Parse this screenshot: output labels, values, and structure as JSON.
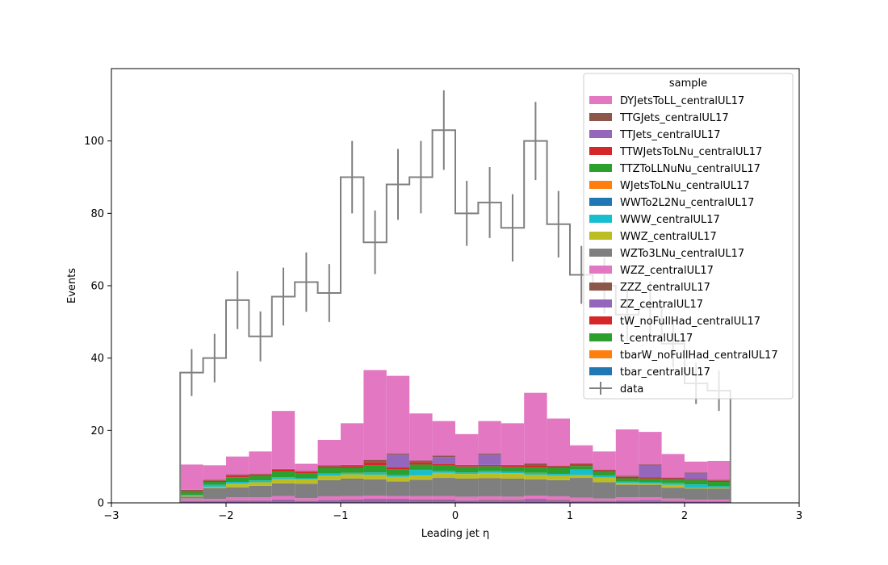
{
  "chart_data": {
    "type": "bar",
    "stacked": true,
    "xlabel": "Leading jet  η",
    "ylabel": "Events",
    "xlim": [
      -3,
      3
    ],
    "ylim": [
      0,
      120
    ],
    "xticks": [
      -3,
      -2,
      -1,
      0,
      1,
      2,
      3
    ],
    "xtick_labels": [
      "−3",
      "−2",
      "−1",
      "0",
      "1",
      "2",
      "3"
    ],
    "yticks": [
      0,
      20,
      40,
      60,
      80,
      100
    ],
    "grid": false,
    "bin_edges": [
      -2.4,
      -2.2,
      -2.0,
      -1.8,
      -1.6,
      -1.4,
      -1.2,
      -1.0,
      -0.8,
      -0.6,
      -0.4,
      -0.2,
      0.0,
      0.2,
      0.4,
      0.6,
      0.8,
      1.0,
      1.2,
      1.4,
      1.6,
      1.8,
      2.0,
      2.2,
      2.4
    ],
    "legend": {
      "title": "sample",
      "placement": "top-right",
      "data_label": "data"
    },
    "series": [
      {
        "name": "DYJetsToLL_centralUL17",
        "color": "#e377c2",
        "values": [
          7.0,
          4.0,
          5.0,
          6.2,
          16.0,
          2.0,
          7.0,
          11.5,
          24.8,
          21.5,
          13.0,
          9.5,
          8.5,
          9.0,
          11.5,
          19.5,
          13.0,
          5.0,
          5.0,
          12.8,
          9.0,
          6.5,
          3.0,
          5.2
        ]
      },
      {
        "name": "TTGJets_centralUL17",
        "color": "#8c564b",
        "values": [
          0.3,
          0.3,
          0.3,
          0.3,
          0.2,
          0.3,
          0.4,
          0.3,
          0.7,
          0.3,
          0.5,
          0.4,
          0.3,
          0.3,
          0.3,
          0.5,
          0.3,
          0.3,
          0.3,
          0.3,
          0.3,
          0.3,
          0.3,
          0.3
        ]
      },
      {
        "name": "TTJets_centralUL17",
        "color": "#9467bd",
        "values": [
          0.0,
          0.0,
          0.0,
          0.0,
          0.0,
          0.0,
          0.0,
          0.0,
          0.0,
          3.5,
          0.0,
          2.0,
          0.0,
          2.8,
          0.0,
          0.0,
          0.0,
          0.0,
          0.0,
          0.0,
          3.2,
          0.0,
          1.5,
          0.0
        ]
      },
      {
        "name": "TTWJetsToLNu_centralUL17",
        "color": "#d62728",
        "values": [
          0.3,
          0.3,
          0.4,
          0.3,
          0.5,
          0.4,
          0.4,
          0.5,
          0.8,
          0.6,
          0.6,
          0.4,
          0.3,
          0.4,
          0.4,
          0.6,
          0.4,
          0.4,
          0.4,
          0.4,
          0.4,
          0.3,
          0.3,
          0.3
        ]
      },
      {
        "name": "TTZToLLNuNu_centralUL17",
        "color": "#2ca02c",
        "values": [
          0.8,
          0.8,
          1.3,
          1.2,
          1.6,
          1.3,
          1.5,
          1.4,
          2.0,
          1.5,
          1.5,
          1.5,
          1.5,
          1.3,
          1.2,
          1.5,
          1.6,
          1.0,
          1.0,
          0.9,
          1.0,
          0.9,
          1.2,
          1.2
        ]
      },
      {
        "name": "WJetsToLNu_centralUL17",
        "color": "#ff7f0e",
        "values": [
          0.0,
          0.0,
          0.0,
          0.0,
          0.0,
          0.0,
          0.0,
          0.0,
          0.0,
          0.0,
          0.0,
          0.0,
          0.0,
          0.0,
          0.0,
          0.0,
          0.0,
          0.0,
          0.0,
          0.0,
          0.0,
          0.0,
          0.0,
          0.0
        ]
      },
      {
        "name": "WWTo2L2Nu_centralUL17",
        "color": "#1f77b4",
        "values": [
          0.0,
          0.0,
          0.0,
          0.0,
          0.0,
          0.0,
          0.0,
          0.0,
          0.0,
          0.0,
          0.0,
          0.0,
          0.0,
          0.0,
          0.0,
          0.0,
          0.0,
          0.0,
          0.0,
          0.0,
          0.0,
          0.0,
          0.0,
          0.0
        ]
      },
      {
        "name": "WWW_centralUL17",
        "color": "#17becf",
        "values": [
          0.3,
          0.6,
          0.5,
          0.5,
          0.5,
          0.3,
          0.6,
          0.4,
          0.6,
          0.5,
          1.5,
          0.5,
          0.4,
          0.5,
          0.4,
          0.5,
          0.5,
          1.5,
          0.5,
          0.4,
          0.4,
          0.5,
          1.0,
          0.5
        ]
      },
      {
        "name": "WWZ_centralUL17",
        "color": "#bcbd22",
        "values": [
          0.2,
          0.3,
          1.0,
          1.0,
          1.2,
          1.2,
          1.2,
          1.2,
          1.3,
          1.3,
          1.2,
          1.4,
          1.3,
          1.5,
          1.5,
          1.3,
          1.2,
          0.8,
          1.3,
          0.5,
          0.3,
          0.8,
          0.2,
          0.2
        ]
      },
      {
        "name": "WZTo3LNu_centralUL17",
        "color": "#7f7f7f",
        "values": [
          0.5,
          3.0,
          2.8,
          3.2,
          3.5,
          4.0,
          4.5,
          4.8,
          4.5,
          4.0,
          4.5,
          5.0,
          5.0,
          5.0,
          5.0,
          4.5,
          4.5,
          5.5,
          4.5,
          3.5,
          3.5,
          3.0,
          3.0,
          3.0
        ]
      },
      {
        "name": "WZZ_centralUL17",
        "color": "#e377c2",
        "values": [
          0.6,
          0.5,
          0.8,
          0.8,
          1.0,
          0.7,
          1.0,
          1.0,
          1.0,
          0.9,
          1.0,
          1.0,
          1.0,
          1.0,
          0.9,
          1.0,
          1.0,
          0.8,
          0.6,
          0.8,
          0.7,
          0.6,
          0.4,
          0.4
        ]
      },
      {
        "name": "ZZZ_centralUL17",
        "color": "#8c564b",
        "values": [
          0.1,
          0.1,
          0.1,
          0.1,
          0.1,
          0.1,
          0.1,
          0.2,
          0.2,
          0.2,
          0.2,
          0.2,
          0.1,
          0.2,
          0.2,
          0.2,
          0.2,
          0.1,
          0.1,
          0.1,
          0.1,
          0.1,
          0.1,
          0.1
        ]
      },
      {
        "name": "ZZ_centralUL17",
        "color": "#9467bd",
        "values": [
          0.5,
          0.5,
          0.6,
          0.6,
          0.8,
          0.5,
          0.7,
          0.7,
          0.8,
          0.8,
          0.7,
          0.7,
          0.6,
          0.6,
          0.6,
          0.8,
          0.6,
          0.5,
          0.5,
          0.6,
          0.7,
          0.5,
          0.4,
          0.4
        ]
      },
      {
        "name": "tW_noFullHad_centralUL17",
        "color": "#d62728",
        "values": [
          0.0,
          0.0,
          0.0,
          0.0,
          0.0,
          0.0,
          0.0,
          0.0,
          0.0,
          0.0,
          0.0,
          0.0,
          0.0,
          0.0,
          0.0,
          0.0,
          0.0,
          0.0,
          0.0,
          0.0,
          0.0,
          0.0,
          0.0,
          0.0
        ]
      },
      {
        "name": "t_centralUL17",
        "color": "#2ca02c",
        "values": [
          0.0,
          0.0,
          0.0,
          0.0,
          0.0,
          0.0,
          0.0,
          0.0,
          0.0,
          0.0,
          0.0,
          0.0,
          0.0,
          0.0,
          0.0,
          0.0,
          0.0,
          0.0,
          0.0,
          0.0,
          0.0,
          0.0,
          0.0,
          0.0
        ]
      },
      {
        "name": "tbarW_noFullHad_centralUL17",
        "color": "#ff7f0e",
        "values": [
          0.0,
          0.0,
          0.0,
          0.0,
          0.0,
          0.0,
          0.0,
          0.0,
          0.0,
          0.0,
          0.0,
          0.0,
          0.0,
          0.0,
          0.0,
          0.0,
          0.0,
          0.0,
          0.0,
          0.0,
          0.0,
          0.0,
          0.0,
          0.0
        ]
      },
      {
        "name": "tbar_centralUL17",
        "color": "#1f77b4",
        "values": [
          0.0,
          0.0,
          0.0,
          0.0,
          0.0,
          0.0,
          0.0,
          0.0,
          0.0,
          0.0,
          0.0,
          0.0,
          0.0,
          0.0,
          0.0,
          0.0,
          0.0,
          0.0,
          0.0,
          0.0,
          0.0,
          0.0,
          0.0,
          0.0
        ]
      }
    ],
    "data": {
      "name": "data",
      "color": "#808080",
      "values": [
        36,
        40,
        56,
        46,
        57,
        61,
        58,
        90,
        72,
        88,
        90,
        103,
        80,
        83,
        76,
        100,
        77,
        63,
        60,
        52,
        54,
        44,
        33,
        31
      ],
      "errors": [
        6.5,
        6.7,
        8.0,
        6.9,
        8.0,
        8.2,
        8.0,
        10.0,
        8.8,
        9.8,
        10.0,
        11.0,
        9.0,
        9.8,
        9.3,
        10.8,
        9.2,
        8.0,
        7.7,
        7.2,
        7.3,
        6.6,
        5.7,
        5.6
      ]
    }
  }
}
